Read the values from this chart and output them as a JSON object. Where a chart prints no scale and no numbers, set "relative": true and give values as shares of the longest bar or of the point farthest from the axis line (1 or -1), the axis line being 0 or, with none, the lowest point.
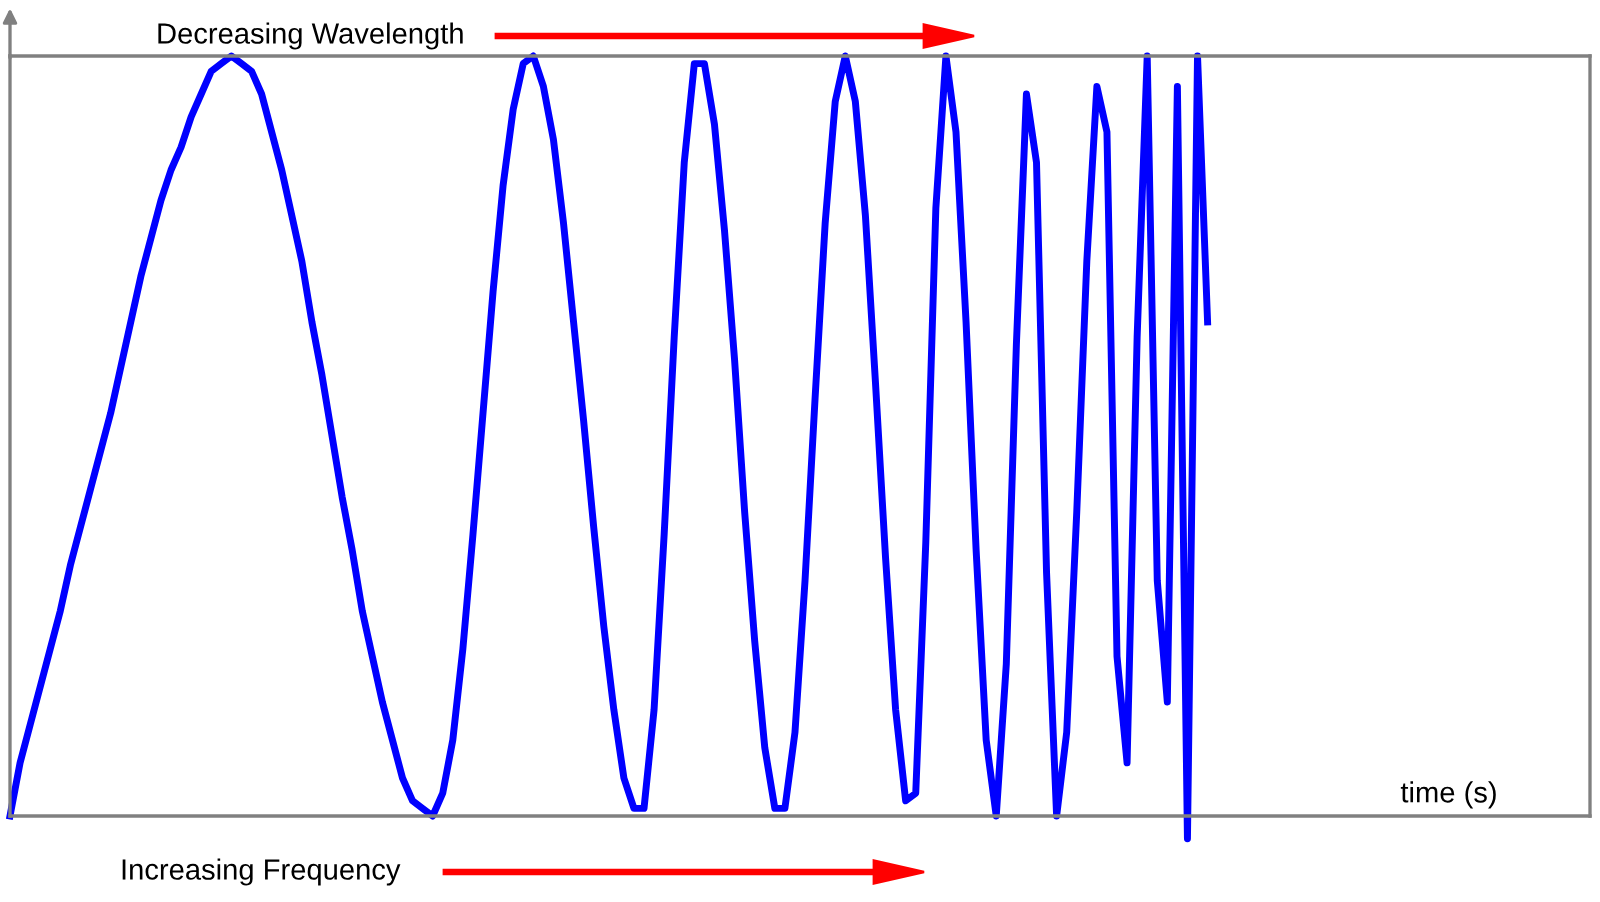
{
  "chart_data": {
    "type": "line",
    "relative": true,
    "xlabel": "time (s)",
    "annotations": [
      "Decreasing Wavelength",
      "Increasing Frequency"
    ],
    "categories": [
      null,
      null,
      null,
      null,
      null,
      null,
      null,
      null,
      null,
      null,
      null,
      null,
      null,
      null,
      null,
      null,
      null,
      null,
      null,
      null,
      null,
      null,
      null,
      null,
      null,
      null,
      null,
      null,
      null,
      null,
      null,
      null,
      null,
      null,
      null,
      null,
      null,
      null,
      null,
      null,
      null,
      null,
      null,
      null,
      null,
      null,
      null,
      null,
      null,
      null,
      null,
      null,
      null,
      null,
      null,
      null,
      null,
      null,
      null,
      null,
      null,
      null,
      null,
      null,
      null,
      null,
      null,
      null,
      null,
      null,
      null,
      null,
      null,
      null,
      null,
      null,
      null,
      null,
      null,
      null,
      null,
      null,
      null,
      null,
      null,
      null,
      null,
      null,
      null,
      null,
      null,
      null,
      null,
      null,
      null,
      null,
      null,
      null,
      null,
      null,
      null,
      null,
      null,
      null,
      null,
      null,
      null,
      null,
      null,
      null,
      null,
      null,
      null,
      null,
      null,
      null,
      null,
      null,
      null,
      null,
      null,
      null,
      null,
      null,
      null,
      null,
      null,
      null,
      null,
      null,
      null,
      null,
      null,
      null,
      null,
      null,
      null,
      null,
      null,
      null,
      null,
      null,
      null,
      null,
      null,
      null,
      null,
      null,
      null,
      null,
      null,
      null,
      null,
      null,
      null,
      null,
      null,
      null
    ],
    "series": [
      {
        "color": "#0000ff",
        "values": [
          0,
          0.07,
          0.12,
          0.17,
          0.22,
          0.27,
          0.33,
          0.38,
          0.43,
          0.48,
          0.53,
          0.59,
          0.65,
          0.71,
          0.76,
          0.81,
          0.85,
          0.88,
          0.92,
          0.95,
          0.98,
          0.99,
          1,
          0.99,
          0.98,
          0.95,
          0.9,
          0.85,
          0.79,
          0.73,
          0.65,
          0.58,
          0.5,
          0.42,
          0.35,
          0.27,
          0.21,
          0.15,
          0.1,
          0.05,
          0.02,
          0.01,
          0,
          0.03,
          0.1,
          0.22,
          0.37,
          0.53,
          0.69,
          0.83,
          0.93,
          0.99,
          1,
          0.96,
          0.89,
          0.78,
          0.65,
          0.52,
          0.38,
          0.25,
          0.14,
          0.05,
          0.01,
          0.01,
          0.14,
          0.37,
          0.63,
          0.86,
          0.99,
          0.99,
          0.91,
          0.77,
          0.6,
          0.4,
          0.23,
          0.09,
          0.01,
          0.01,
          0.11,
          0.31,
          0.55,
          0.78,
          0.94,
          1,
          0.94,
          0.79,
          0.57,
          0.34,
          0.14,
          0.02,
          0.03,
          0.36,
          0.8,
          1,
          0.9,
          0.65,
          0.35,
          0.1,
          0,
          0.2,
          0.62,
          0.95,
          0.86,
          0.32,
          0,
          0.11,
          0.4,
          0.73,
          0.96,
          0.9,
          0.21,
          0.07,
          0.63,
          1,
          0.31,
          0.15,
          0.96,
          -0.03,
          1,
          0.65,
          null,
          null,
          null,
          null,
          null,
          null,
          null,
          null,
          null,
          null,
          null,
          null,
          null,
          null,
          null,
          null,
          null,
          null,
          null,
          null,
          null,
          null,
          null,
          null,
          null,
          null,
          null,
          null,
          null,
          null,
          null,
          null,
          null,
          null,
          null,
          null,
          null,
          null
        ]
      }
    ],
    "legend": false,
    "grid": false,
    "marker": "none",
    "line_style": "solid"
  }
}
